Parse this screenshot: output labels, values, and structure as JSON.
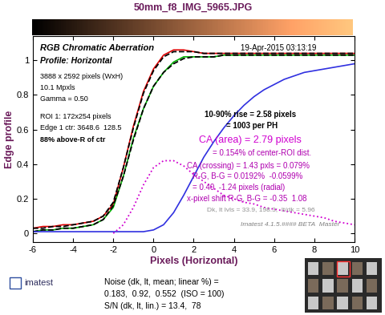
{
  "header": {
    "title": "50mm_f8_IMG_5965.JPG"
  },
  "chart_data": {
    "type": "line",
    "title": "RGB Chromatic Aberration",
    "subtitle": "Profile: Horizontal",
    "date": "19-Apr-2015 03:13:19",
    "x_label": "Pixels (Horizontal)",
    "y_label": "Edge profile",
    "xlim": [
      -6,
      10
    ],
    "ylim": [
      -0.05,
      1.14
    ],
    "xticks": [
      -6,
      -4,
      -2,
      0,
      2,
      4,
      6,
      8,
      10
    ],
    "yticks": [
      0,
      0.2,
      0.4,
      0.6,
      0.8,
      1
    ],
    "grid": false,
    "x": [
      -6,
      -5.5,
      -5,
      -4.5,
      -4,
      -3.5,
      -3,
      -2.5,
      -2,
      -1.5,
      -1,
      -0.5,
      0,
      0.5,
      1,
      1.5,
      2,
      2.5,
      3,
      3.5,
      4,
      4.5,
      5,
      5.5,
      6,
      6.5,
      7,
      7.5,
      8,
      8.5,
      9,
      9.5,
      10
    ],
    "series": [
      {
        "color": "#e00000",
        "line_style": "solid",
        "values": [
          0.03,
          0.04,
          0.04,
          0.05,
          0.05,
          0.06,
          0.07,
          0.1,
          0.17,
          0.38,
          0.62,
          0.82,
          0.95,
          1.03,
          1.06,
          1.06,
          1.05,
          1.04,
          1.04,
          1.04,
          1.04,
          1.04,
          1.04,
          1.04,
          1.04,
          1.04,
          1.04,
          1.04,
          1.04,
          1.04,
          1.04,
          1.04,
          1.04
        ]
      },
      {
        "color": "#00b000",
        "line_style": "solid",
        "values": [
          0.01,
          0.02,
          0.02,
          0.03,
          0.03,
          0.04,
          0.05,
          0.08,
          0.15,
          0.33,
          0.55,
          0.72,
          0.85,
          0.93,
          0.99,
          1.02,
          1.02,
          1.02,
          1.02,
          1.03,
          1.03,
          1.03,
          1.03,
          1.03,
          1.03,
          1.03,
          1.03,
          1.03,
          1.03,
          1.03,
          1.03,
          1.03,
          1.03
        ]
      },
      {
        "color": "#000000",
        "line_style": "dashed",
        "values": [
          0.03,
          0.03,
          0.04,
          0.04,
          0.05,
          0.06,
          0.07,
          0.1,
          0.18,
          0.38,
          0.61,
          0.81,
          0.94,
          1.02,
          1.05,
          1.05,
          1.05,
          1.04,
          1.04,
          1.04,
          1.04,
          1.04,
          1.04,
          1.04,
          1.04,
          1.04,
          1.04,
          1.04,
          1.04,
          1.04,
          1.04,
          1.04,
          1.04
        ]
      },
      {
        "color": "#000000",
        "line_style": "dashed",
        "values": [
          0.01,
          0.02,
          0.02,
          0.03,
          0.03,
          0.04,
          0.05,
          0.08,
          0.16,
          0.33,
          0.54,
          0.72,
          0.85,
          0.93,
          0.98,
          1.01,
          1.02,
          1.02,
          1.02,
          1.03,
          1.03,
          1.03,
          1.03,
          1.03,
          1.03,
          1.03,
          1.03,
          1.03,
          1.03,
          1.03,
          1.03,
          1.03,
          1.03
        ]
      },
      {
        "color": "#3030e0",
        "line_style": "solid",
        "values": [
          0.01,
          0.01,
          0.01,
          0.01,
          0.01,
          0.01,
          0.01,
          0.01,
          0.01,
          0.01,
          0.01,
          0.01,
          0.02,
          0.05,
          0.12,
          0.22,
          0.33,
          0.44,
          0.53,
          0.61,
          0.68,
          0.74,
          0.79,
          0.83,
          0.86,
          0.89,
          0.91,
          0.93,
          0.94,
          0.95,
          0.96,
          0.97,
          0.98
        ]
      },
      {
        "color": "#d000d0",
        "line_style": "dotted",
        "values": [
          null,
          null,
          null,
          null,
          null,
          null,
          null,
          null,
          0.0,
          0.05,
          0.15,
          0.28,
          0.38,
          0.42,
          0.42,
          0.39,
          0.34,
          0.3,
          0.26,
          0.22,
          0.2,
          0.18,
          0.17,
          0.15,
          0.14,
          0.13,
          0.12,
          0.11,
          0.1,
          0.09,
          0.07,
          0.06,
          0.05
        ]
      }
    ],
    "left_notes": [
      "3888 x 2592 pixels (WxH)",
      "10.1 Mpxls",
      "Gamma = 0.50",
      "ROI 1: 172x254 pixels",
      "Edge 1 ctr: 3648.6  128.5",
      "88% above-R of ctr"
    ],
    "right_notes": [
      {
        "text": "10-90% rise = 2.58 pixels",
        "color": "#000000"
      },
      {
        "text": "= 1003 per PH",
        "color": "#000000"
      },
      {
        "text": "CA (area) = 2.79 pixels",
        "color": "#d000d0"
      },
      {
        "text": "= 0.154% of center-ROI dist.",
        "color": "#b000b0"
      },
      {
        "text": "CA (crossing) = 1.43 pxls = 0.079%",
        "color": "#b000b0"
      },
      {
        "text": "R-G, B-G = 0.0192%  -0.0599%",
        "color": "#b000b0"
      },
      {
        "text": "= 0.40  -1.24 pixels (radial)",
        "color": "#b000b0"
      },
      {
        "text": "x-pixel shift R-G, B-G = -0.35  1.08",
        "color": "#b000b0"
      },
      {
        "text": "Dk, lt lvls = 33.9, 198.3;  lt/dk = 5.96",
        "color": "#909090"
      },
      {
        "text": "Imatest 4.1.5.#### BETA  Master",
        "color": "#808080"
      }
    ]
  },
  "footer": {
    "logo": "imatest",
    "lines": [
      "Noise (dk, lt, mean; linear %) =",
      "0.183,  0.92,  0.552  (ISO = 100)",
      "S/N (dk, lt, lin.) = 13.4,  78"
    ]
  }
}
